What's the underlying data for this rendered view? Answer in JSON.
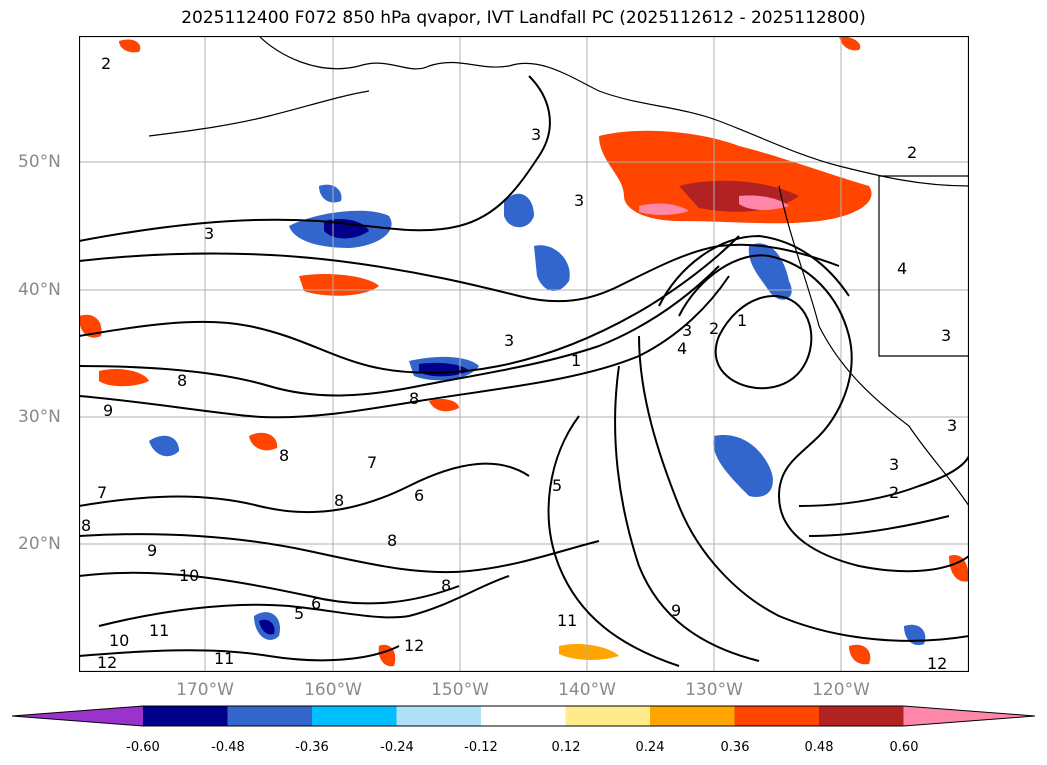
{
  "title": "2025112400 F072 850 hPa qvapor, IVT Landfall PC (2025112612 - 2025112800)",
  "lat_labels": [
    "50°N",
    "40°N",
    "30°N",
    "20°N"
  ],
  "lon_labels": [
    "170°W",
    "160°W",
    "150°W",
    "140°W",
    "130°W",
    "120°W"
  ],
  "contour_labels": [
    "2",
    "3",
    "3",
    "3",
    "4",
    "3",
    "3",
    "8",
    "9",
    "8",
    "7",
    "8",
    "9",
    "10",
    "7",
    "8",
    "6",
    "5",
    "10",
    "12",
    "11",
    "12",
    "11",
    "8",
    "6",
    "8",
    "8",
    "5",
    "1",
    "2",
    "1",
    "4",
    "3",
    "2",
    "3",
    "3",
    "2",
    "9",
    "11",
    "12"
  ],
  "colorbar": {
    "tick_labels": [
      "-0.60",
      "-0.48",
      "-0.36",
      "-0.24",
      "-0.12",
      "0.12",
      "0.24",
      "0.36",
      "0.48",
      "0.60"
    ],
    "colors": [
      "#9933cc",
      "#00008b",
      "#3366cc",
      "#00bfff",
      "#b0e0f5",
      "#ffffff",
      "#ffeb8c",
      "#ffa500",
      "#ff4500",
      "#b22222",
      "#ff88aa"
    ]
  }
}
